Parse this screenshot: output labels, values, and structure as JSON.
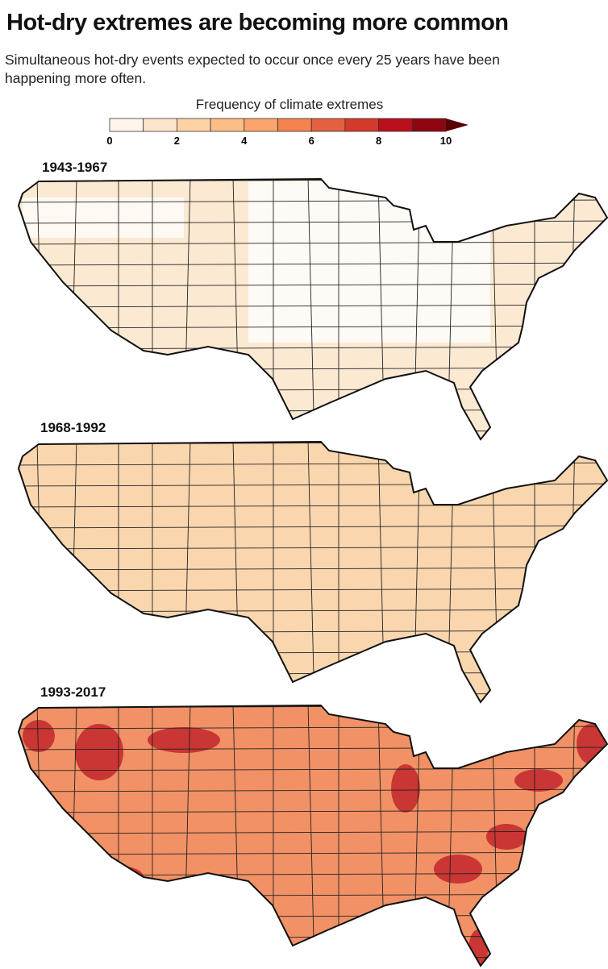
{
  "header": {
    "title": "Hot-dry extremes are becoming more common",
    "subtitle": "Simultaneous hot-dry events expected to occur once every 25 years have been happening more often."
  },
  "chart_data": {
    "type": "heatmap",
    "colorbar": {
      "title": "Frequency of climate extremes",
      "range": [
        0,
        10
      ],
      "extend": "max",
      "ticks": [
        "0",
        "2",
        "4",
        "6",
        "8",
        "10"
      ],
      "colors": [
        "#fff5eb",
        "#fde5cc",
        "#fdd3a6",
        "#fdbe85",
        "#fba56c",
        "#f5834f",
        "#e4613f",
        "#d33a2c",
        "#b9101b",
        "#8e0710"
      ]
    },
    "panels": [
      {
        "label": "1943-1967",
        "fill": "#fbe9d2"
      },
      {
        "label": "1968-1992",
        "fill": "#f9d6ad"
      },
      {
        "label": "1993-2017",
        "fill": "#f19165"
      }
    ]
  }
}
